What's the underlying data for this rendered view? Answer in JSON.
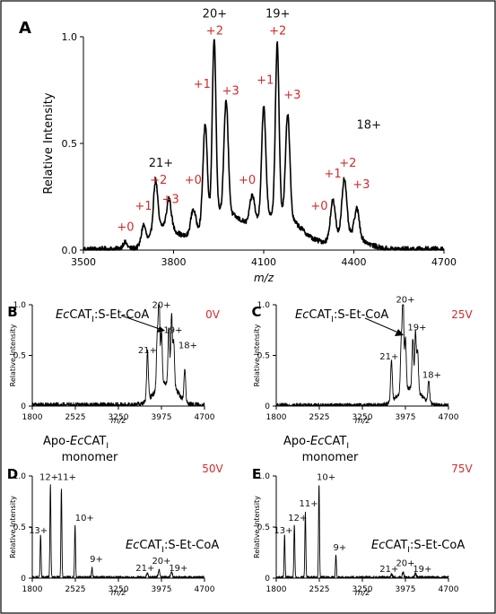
{
  "chart_data": [
    {
      "id": "A",
      "type": "line",
      "panel_letter": "A",
      "xlabel": "m/z",
      "ylabel": "Relative Intensity",
      "xlim": [
        3500,
        4700
      ],
      "ylim": [
        0,
        1.0
      ],
      "xticks": [
        "3500",
        "3800",
        "4100",
        "4400",
        "4700"
      ],
      "yticks": [
        "0.0",
        "0.5",
        "1.0"
      ],
      "peaks": [
        {
          "x": 3638,
          "y": 0.03,
          "w": 8
        },
        {
          "x": 3700,
          "y": 0.09,
          "w": 7
        },
        {
          "x": 3740,
          "y": 0.24,
          "w": 7
        },
        {
          "x": 3785,
          "y": 0.13,
          "w": 7
        },
        {
          "x": 3865,
          "y": 0.11,
          "w": 8
        },
        {
          "x": 3905,
          "y": 0.45,
          "w": 7
        },
        {
          "x": 3935,
          "y": 0.82,
          "w": 6
        },
        {
          "x": 3975,
          "y": 0.52,
          "w": 7
        },
        {
          "x": 4062,
          "y": 0.13,
          "w": 8
        },
        {
          "x": 4100,
          "y": 0.52,
          "w": 7
        },
        {
          "x": 4145,
          "y": 0.79,
          "w": 6
        },
        {
          "x": 4180,
          "y": 0.48,
          "w": 7
        },
        {
          "x": 4330,
          "y": 0.18,
          "w": 8
        },
        {
          "x": 4368,
          "y": 0.26,
          "w": 8
        },
        {
          "x": 4410,
          "y": 0.13,
          "w": 8
        }
      ],
      "envelopes": [
        {
          "x": 3770,
          "y": 0.11,
          "w": 40
        },
        {
          "x": 3955,
          "y": 0.18,
          "w": 65
        },
        {
          "x": 4150,
          "y": 0.17,
          "w": 70
        },
        {
          "x": 4380,
          "y": 0.07,
          "w": 50
        }
      ],
      "noise": 0.012,
      "annotations": [
        {
          "text": "20+",
          "x": 3937,
          "y": 1.09,
          "color": "#111"
        },
        {
          "text": "19+",
          "x": 4147,
          "y": 1.09,
          "color": "#111"
        },
        {
          "text": "18+",
          "x": 4450,
          "y": 0.57,
          "color": "#111"
        },
        {
          "text": "21+",
          "x": 3758,
          "y": 0.39,
          "color": "#111"
        },
        {
          "text": "+2",
          "x": 3937,
          "y": 1.01,
          "color": "#d42a2a"
        },
        {
          "text": "+2",
          "x": 4147,
          "y": 1.01,
          "color": "#d42a2a"
        },
        {
          "text": "+1",
          "x": 3895,
          "y": 0.76,
          "color": "#d42a2a"
        },
        {
          "text": "+3",
          "x": 3990,
          "y": 0.73,
          "color": "#d42a2a"
        },
        {
          "text": "+1",
          "x": 4105,
          "y": 0.78,
          "color": "#d42a2a"
        },
        {
          "text": "+3",
          "x": 4195,
          "y": 0.71,
          "color": "#d42a2a"
        },
        {
          "text": "+2",
          "x": 3750,
          "y": 0.31,
          "color": "#d42a2a"
        },
        {
          "text": "+1",
          "x": 3700,
          "y": 0.19,
          "color": "#d42a2a"
        },
        {
          "text": "+3",
          "x": 3790,
          "y": 0.22,
          "color": "#d42a2a"
        },
        {
          "text": "+0",
          "x": 3640,
          "y": 0.09,
          "color": "#d42a2a"
        },
        {
          "text": "+0",
          "x": 3865,
          "y": 0.31,
          "color": "#d42a2a"
        },
        {
          "text": "+0",
          "x": 4045,
          "y": 0.31,
          "color": "#d42a2a"
        },
        {
          "text": "+0",
          "x": 4285,
          "y": 0.19,
          "color": "#d42a2a"
        },
        {
          "text": "+1",
          "x": 4330,
          "y": 0.34,
          "color": "#d42a2a"
        },
        {
          "text": "+2",
          "x": 4380,
          "y": 0.39,
          "color": "#d42a2a"
        },
        {
          "text": "+3",
          "x": 4425,
          "y": 0.29,
          "color": "#d42a2a"
        }
      ]
    },
    {
      "id": "B",
      "type": "line",
      "panel_letter": "B",
      "voltage": "0V",
      "xlabel": "m/z",
      "ylabel": "Relative Intensity",
      "xlim": [
        1800,
        4700
      ],
      "ylim": [
        0,
        1.0
      ],
      "xticks": [
        "1800",
        "2525",
        "3250",
        "3975",
        "4700"
      ],
      "yticks": [
        "0",
        "0.5",
        "1.0"
      ],
      "peaks": [
        {
          "x": 3740,
          "y": 0.48,
          "w": 14
        },
        {
          "x": 3905,
          "y": 0.55,
          "w": 14
        },
        {
          "x": 3935,
          "y": 0.92,
          "w": 12
        },
        {
          "x": 3975,
          "y": 0.55,
          "w": 14
        },
        {
          "x": 4100,
          "y": 0.55,
          "w": 14
        },
        {
          "x": 4145,
          "y": 0.68,
          "w": 12
        },
        {
          "x": 4180,
          "y": 0.45,
          "w": 14
        },
        {
          "x": 4368,
          "y": 0.32,
          "w": 14
        }
      ],
      "envelopes": [
        {
          "x": 3960,
          "y": 0.15,
          "w": 150
        },
        {
          "x": 4160,
          "y": 0.14,
          "w": 120
        }
      ],
      "noise": 0.025,
      "annotations": [
        {
          "text": "20+",
          "x": 3975,
          "y": 0.97,
          "color": "#111"
        },
        {
          "text": "19+",
          "x": 4170,
          "y": 0.72,
          "color": "#111"
        },
        {
          "text": "21+",
          "x": 3740,
          "y": 0.52,
          "color": "#111"
        },
        {
          "text": "18+",
          "x": 4420,
          "y": 0.57,
          "color": "#111"
        }
      ],
      "label_complex": {
        "italic": "Ec",
        "main": "CAT",
        "sub": "I",
        "tail": ":S-Et-CoA"
      }
    },
    {
      "id": "C",
      "type": "line",
      "panel_letter": "C",
      "voltage": "25V",
      "xlabel": "m/z",
      "ylabel": "Relative Intensity",
      "xlim": [
        1800,
        4700
      ],
      "ylim": [
        0,
        1.0
      ],
      "xticks": [
        "1800",
        "2525",
        "3250",
        "3975",
        "4700"
      ],
      "yticks": [
        "0",
        "0.5",
        "1.0"
      ],
      "peaks": [
        {
          "x": 3740,
          "y": 0.4,
          "w": 14
        },
        {
          "x": 3905,
          "y": 0.52,
          "w": 14
        },
        {
          "x": 3935,
          "y": 0.97,
          "w": 12
        },
        {
          "x": 3975,
          "y": 0.52,
          "w": 14
        },
        {
          "x": 4100,
          "y": 0.5,
          "w": 14
        },
        {
          "x": 4145,
          "y": 0.56,
          "w": 12
        },
        {
          "x": 4180,
          "y": 0.4,
          "w": 14
        },
        {
          "x": 4368,
          "y": 0.22,
          "w": 14
        }
      ],
      "envelopes": [
        {
          "x": 3960,
          "y": 0.12,
          "w": 150
        },
        {
          "x": 4160,
          "y": 0.1,
          "w": 120
        }
      ],
      "noise": 0.02,
      "annotations": [
        {
          "text": "20+",
          "x": 3975,
          "y": 1.02,
          "color": "#111"
        },
        {
          "text": "19+",
          "x": 4170,
          "y": 0.75,
          "color": "#111"
        },
        {
          "text": "21+",
          "x": 3700,
          "y": 0.46,
          "color": "#111"
        },
        {
          "text": "18+",
          "x": 4420,
          "y": 0.28,
          "color": "#111"
        }
      ],
      "label_complex": {
        "italic": "Ec",
        "main": "CAT",
        "sub": "I",
        "tail": ":S-Et-CoA"
      }
    },
    {
      "id": "D",
      "type": "line",
      "panel_letter": "D",
      "voltage": "50V",
      "xlabel": "m/z",
      "ylabel": "Relative Intensity",
      "xlim": [
        1800,
        4700
      ],
      "ylim": [
        0,
        1.0
      ],
      "xticks": [
        "1800",
        "2525",
        "3250",
        "3975",
        "4700"
      ],
      "yticks": [
        "0",
        "0.5",
        "1.0"
      ],
      "peaks": [
        {
          "x": 1940,
          "y": 0.42,
          "w": 8
        },
        {
          "x": 2105,
          "y": 0.92,
          "w": 8
        },
        {
          "x": 2290,
          "y": 0.88,
          "w": 8
        },
        {
          "x": 2520,
          "y": 0.52,
          "w": 8
        },
        {
          "x": 2805,
          "y": 0.1,
          "w": 8
        },
        {
          "x": 3740,
          "y": 0.04,
          "w": 14
        },
        {
          "x": 3935,
          "y": 0.07,
          "w": 14
        },
        {
          "x": 4145,
          "y": 0.06,
          "w": 14
        }
      ],
      "envelopes": [],
      "noise": 0.015,
      "annotations": [
        {
          "text": "13+",
          "x": 1900,
          "y": 0.44,
          "color": "#111"
        },
        {
          "text": "12+",
          "x": 2080,
          "y": 0.96,
          "color": "#111"
        },
        {
          "text": "11+",
          "x": 2380,
          "y": 0.96,
          "color": "#111"
        },
        {
          "text": "10+",
          "x": 2680,
          "y": 0.56,
          "color": "#111"
        },
        {
          "text": "9+",
          "x": 2880,
          "y": 0.16,
          "color": "#111"
        },
        {
          "text": "21+",
          "x": 3700,
          "y": 0.07,
          "color": "#111"
        },
        {
          "text": "20+",
          "x": 3975,
          "y": 0.14,
          "color": "#111"
        },
        {
          "text": "19+",
          "x": 4260,
          "y": 0.07,
          "color": "#111"
        }
      ],
      "label_apo": {
        "prefix": "Apo-",
        "italic": "Ec",
        "main": "CAT",
        "sub": "I",
        "line2": "monomer"
      },
      "label_complex": {
        "italic": "Ec",
        "main": "CAT",
        "sub": "I",
        "tail": ":S-Et-CoA"
      }
    },
    {
      "id": "E",
      "type": "line",
      "panel_letter": "E",
      "voltage": "75V",
      "xlabel": "m/z",
      "ylabel": "Relative Intensity",
      "xlim": [
        1800,
        4700
      ],
      "ylim": [
        0,
        1.0
      ],
      "xticks": [
        "1800",
        "2525",
        "3250",
        "3975",
        "4700"
      ],
      "yticks": [
        "0",
        "0.5",
        "1.0"
      ],
      "peaks": [
        {
          "x": 1940,
          "y": 0.42,
          "w": 8
        },
        {
          "x": 2105,
          "y": 0.52,
          "w": 8
        },
        {
          "x": 2290,
          "y": 0.65,
          "w": 8
        },
        {
          "x": 2520,
          "y": 0.92,
          "w": 8
        },
        {
          "x": 2805,
          "y": 0.22,
          "w": 8
        },
        {
          "x": 3740,
          "y": 0.03,
          "w": 14
        },
        {
          "x": 3935,
          "y": 0.05,
          "w": 14
        },
        {
          "x": 4145,
          "y": 0.04,
          "w": 14
        }
      ],
      "envelopes": [],
      "noise": 0.015,
      "annotations": [
        {
          "text": "13+",
          "x": 1920,
          "y": 0.44,
          "color": "#111"
        },
        {
          "text": "12+",
          "x": 2160,
          "y": 0.56,
          "color": "#111"
        },
        {
          "text": "11+",
          "x": 2345,
          "y": 0.7,
          "color": "#111"
        },
        {
          "text": "10+",
          "x": 2640,
          "y": 0.96,
          "color": "#111"
        },
        {
          "text": "9+",
          "x": 2870,
          "y": 0.27,
          "color": "#111"
        },
        {
          "text": "21+",
          "x": 3700,
          "y": 0.06,
          "color": "#111"
        },
        {
          "text": "20+",
          "x": 3975,
          "y": 0.12,
          "color": "#111"
        },
        {
          "text": "19+",
          "x": 4260,
          "y": 0.06,
          "color": "#111"
        }
      ],
      "label_apo": {
        "prefix": "Apo-",
        "italic": "Ec",
        "main": "CAT",
        "sub": "I",
        "line2": "monomer"
      },
      "label_complex": {
        "italic": "Ec",
        "main": "CAT",
        "sub": "I",
        "tail": ":S-Et-CoA"
      }
    }
  ],
  "colors": {
    "trace": "#000000",
    "annotation_red": "#d42a2a",
    "frame": "#000000"
  }
}
